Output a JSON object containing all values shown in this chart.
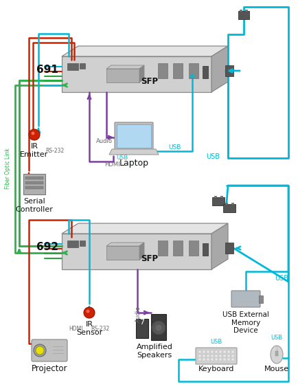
{
  "bg_color": "#ffffff",
  "usb_color": "#00b8d8",
  "green_color": "#2db34a",
  "red_color": "#cc2200",
  "purple_color": "#7b3fa0",
  "gray_dark": "#888888",
  "gray_mid": "#b8b8b8",
  "gray_light": "#dcdcdc",
  "gray_top": "#e8e8e8",
  "gray_side": "#aaaaaa",
  "device_face": "#d0d0d0",
  "device_side": "#a8a8a8",
  "device_top": "#e4e4e4",
  "sfp_face": "#b0b0b0",
  "sfp_side": "#888888",
  "sfp_top": "#c8c8c8",
  "connector_dark": "#555555",
  "connector_mid": "#777777",
  "text_black": "#111111",
  "text_gray": "#666666",
  "label_691": "691",
  "label_692": "692",
  "label_sfp": "SFP",
  "label_ir_emitter": "IR\nEmitter",
  "label_serial": "Serial\nController",
  "label_laptop": "Laptop",
  "label_ir_sensor": "IR\nSensor",
  "label_projector": "Projector",
  "label_speakers": "Amplified\nSpeakers",
  "label_usb_mem": "USB External\nMemory\nDevice",
  "label_keyboard": "Keyboard",
  "label_mouse": "Mouse",
  "label_hdmi": "HDMI",
  "label_audio": "Audio",
  "label_usb": "USB",
  "label_rs232": "RS-232",
  "label_fiber": "Fiber Optic Link"
}
